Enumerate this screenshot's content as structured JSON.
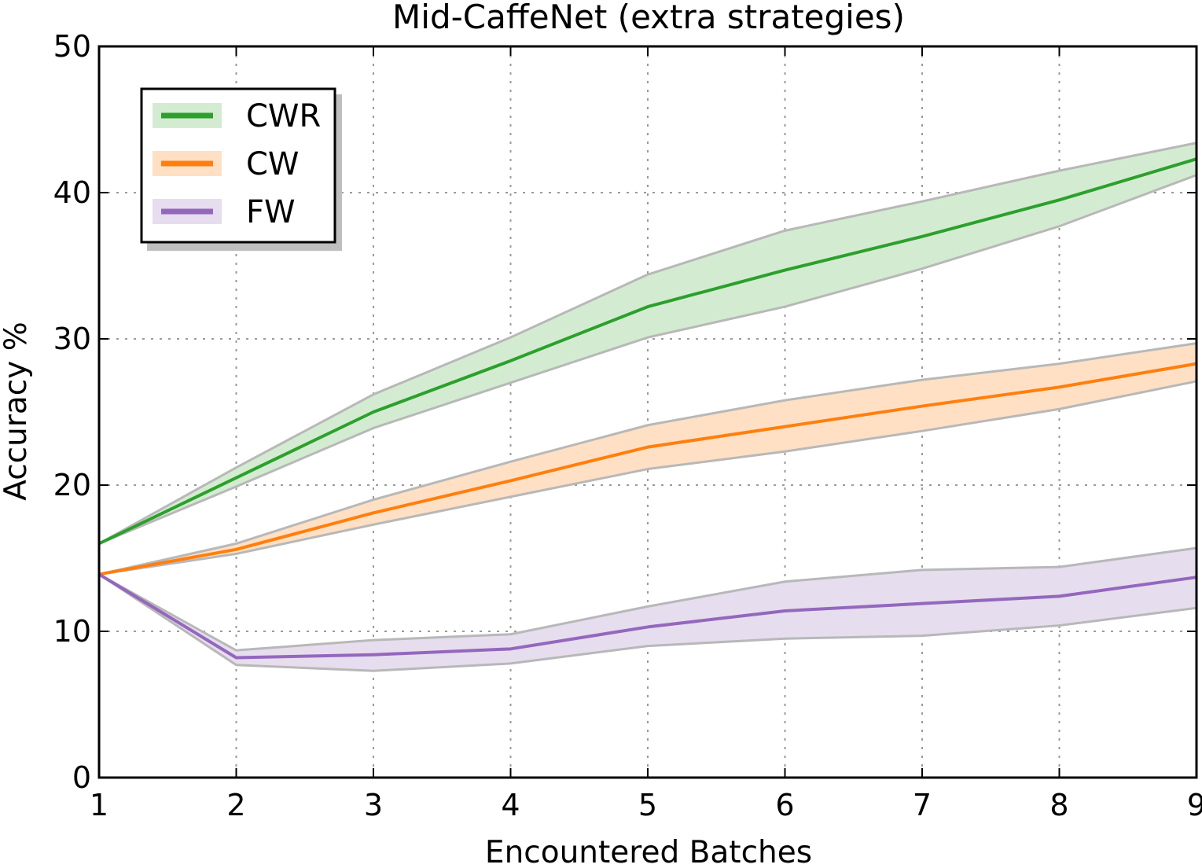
{
  "chart_data": {
    "type": "line",
    "title": "Mid-CaffeNet (extra strategies)",
    "xlabel": "Encountered Batches",
    "ylabel": "Accuracy %",
    "xlim": [
      1,
      9
    ],
    "ylim": [
      0,
      50
    ],
    "x": [
      1,
      2,
      3,
      4,
      5,
      6,
      7,
      8,
      9
    ],
    "xticks": [
      "1",
      "2",
      "3",
      "4",
      "5",
      "6",
      "7",
      "8",
      "9"
    ],
    "yticks": [
      "0",
      "10",
      "20",
      "30",
      "40",
      "50"
    ],
    "grid": true,
    "legend_position": "top-left",
    "series": [
      {
        "name": "CWR",
        "color": "#2ca02c",
        "fill": "#d3ecd1",
        "values": [
          16.0,
          20.5,
          25.0,
          28.5,
          32.2,
          34.7,
          37.0,
          39.5,
          42.3
        ],
        "upper": [
          16.0,
          21.2,
          26.2,
          30.1,
          34.4,
          37.4,
          39.4,
          41.5,
          43.4
        ],
        "lower": [
          16.0,
          19.9,
          23.9,
          27.0,
          30.1,
          32.2,
          34.8,
          37.7,
          41.2
        ]
      },
      {
        "name": "CW",
        "color": "#ff7f0e",
        "fill": "#ffe0c4",
        "values": [
          13.9,
          15.6,
          18.1,
          20.3,
          22.6,
          24.0,
          25.4,
          26.7,
          28.3
        ],
        "upper": [
          13.9,
          16.0,
          19.0,
          21.6,
          24.1,
          25.8,
          27.2,
          28.3,
          29.7
        ],
        "lower": [
          13.9,
          15.3,
          17.3,
          19.2,
          21.1,
          22.3,
          23.7,
          25.2,
          27.1
        ]
      },
      {
        "name": "FW",
        "color": "#9467bd",
        "fill": "#e6ddef",
        "values": [
          13.9,
          8.2,
          8.4,
          8.8,
          10.3,
          11.4,
          11.9,
          12.4,
          13.7
        ],
        "upper": [
          13.9,
          8.7,
          9.4,
          9.8,
          11.7,
          13.4,
          14.2,
          14.4,
          15.7
        ],
        "lower": [
          13.9,
          7.7,
          7.3,
          7.8,
          9.0,
          9.5,
          9.7,
          10.4,
          11.6
        ]
      }
    ]
  }
}
